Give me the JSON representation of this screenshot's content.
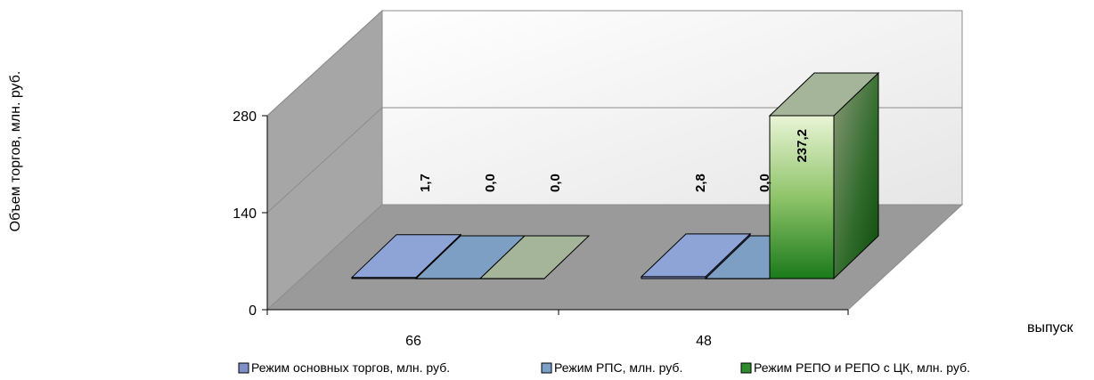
{
  "chart_data": {
    "type": "bar",
    "title": "",
    "ylabel": "Объем торгов, млн. руб.",
    "xlabel": "выпуск",
    "ylim": [
      0,
      280
    ],
    "yticks": [
      "0",
      "140",
      "280"
    ],
    "categories": [
      "66",
      "48"
    ],
    "series": [
      {
        "name": "Режим основных торгов, млн. руб.",
        "values": [
          1.7,
          2.8
        ],
        "labels": [
          "1,7",
          "2,8"
        ],
        "color": "#7f8fc8"
      },
      {
        "name": "Режим РПС, млн. руб.",
        "values": [
          0.0,
          0.0
        ],
        "labels": [
          "0,0",
          "0,0"
        ],
        "color": "#7ba0c8"
      },
      {
        "name": "Режим РЕПО и РЕПО с ЦК, млн. руб.",
        "values": [
          0.0,
          237.2
        ],
        "labels": [
          "0,0",
          "237,2"
        ],
        "color": "#2e8b2e"
      }
    ],
    "legend_position": "bottom",
    "grid": true
  }
}
